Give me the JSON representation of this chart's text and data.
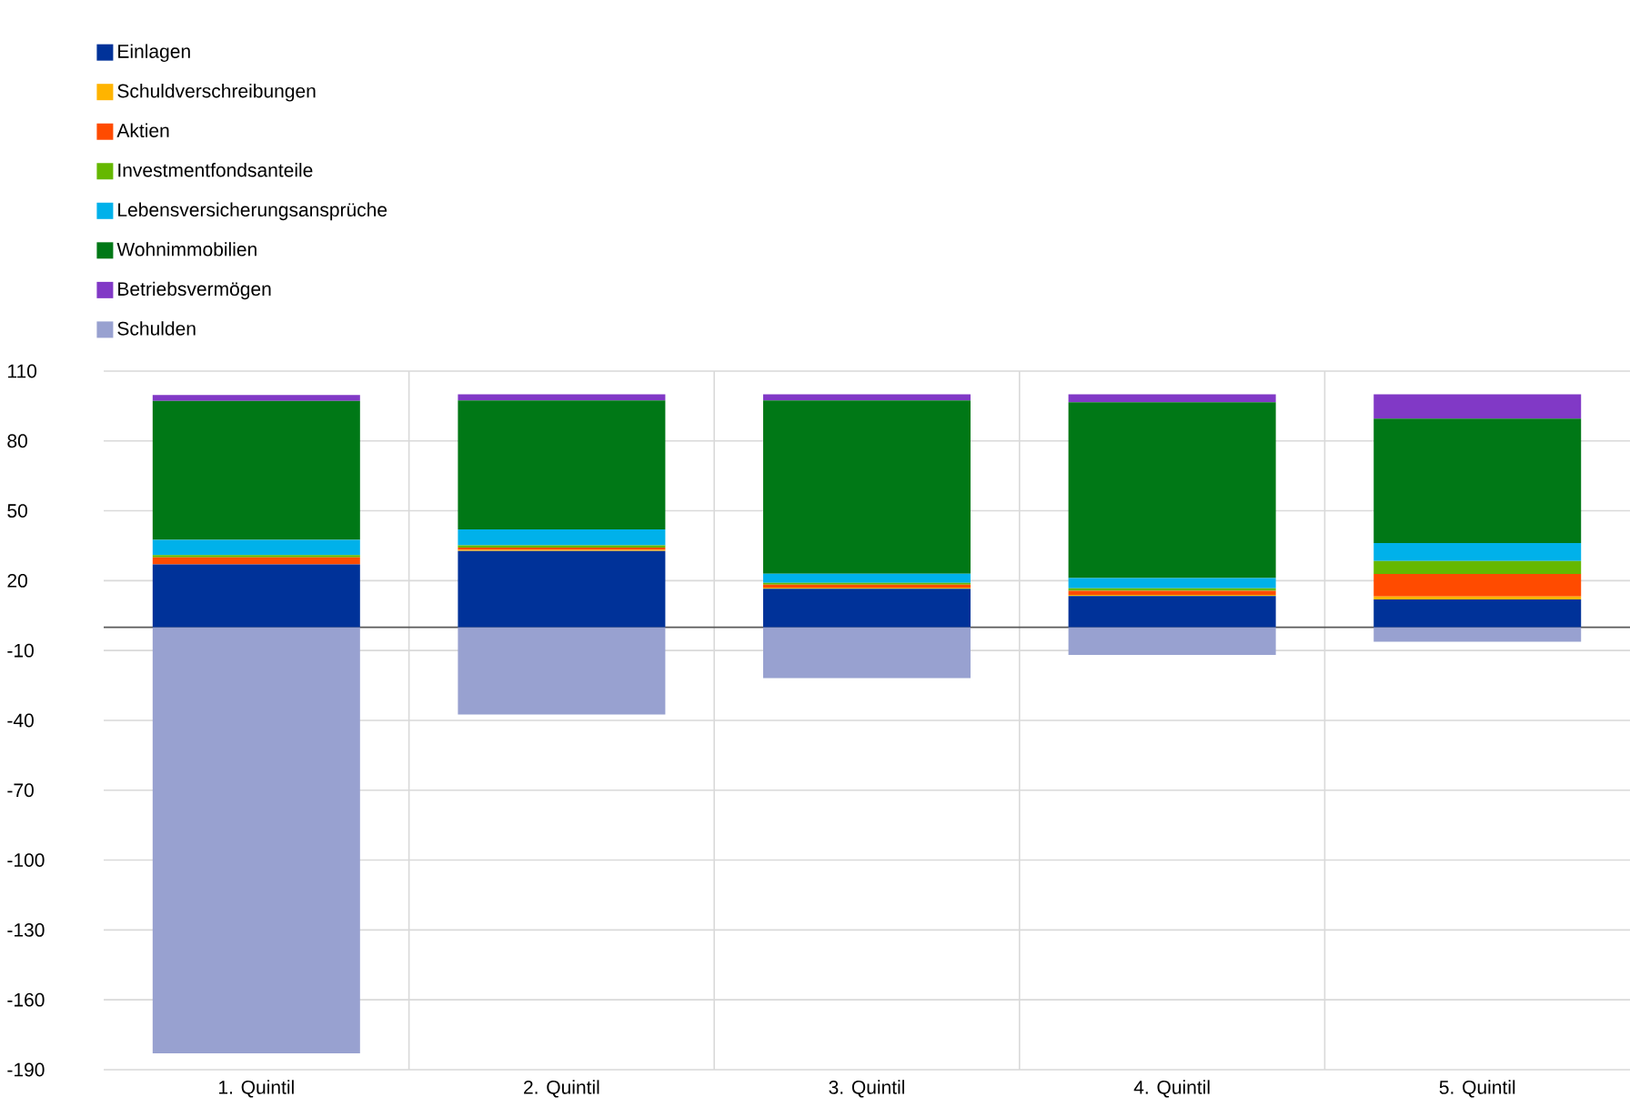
{
  "chart_data": {
    "type": "bar",
    "stacked": true,
    "categories": [
      "1. Quintil",
      "2. Quintil",
      "3. Quintil",
      "4. Quintil",
      "5. Quintil"
    ],
    "series": [
      {
        "name": "Einlagen",
        "color": "#003299",
        "values": [
          27,
          32.7,
          16.5,
          13.4,
          11.9
        ]
      },
      {
        "name": "Schuldverschreibungen",
        "color": "#ffb400",
        "values": [
          null,
          0.5,
          0.5,
          0.5,
          1.3
        ]
      },
      {
        "name": "Aktien",
        "color": "#ff4b00",
        "values": [
          3,
          1,
          1.3,
          1.8,
          9.7
        ]
      },
      {
        "name": "Investmentfondsanteile",
        "color": "#65b800",
        "values": [
          1,
          1,
          0.8,
          1,
          5.5
        ]
      },
      {
        "name": "Lebensversicherungsansprüche",
        "color": "#00b1ea",
        "values": [
          6.5,
          6.8,
          3.9,
          4.4,
          7.8
        ]
      },
      {
        "name": "Wohnimmobilien",
        "color": "#007816",
        "values": [
          59.7,
          55.4,
          74.4,
          75.5,
          53.4
        ]
      },
      {
        "name": "Betriebsvermögen",
        "color": "#8139c6",
        "values": [
          2.5,
          2.6,
          2.6,
          3.4,
          10.4
        ]
      },
      {
        "name": "Schulden",
        "color": "#98a1d0",
        "values": [
          -183,
          -37.5,
          -21.8,
          -11.9,
          -6.2
        ]
      }
    ],
    "ylim": [
      -190,
      110
    ],
    "yticks": [
      -190,
      -160,
      -130,
      -100,
      -70,
      -40,
      -10,
      20,
      50,
      80,
      110
    ],
    "grid": true,
    "legend": "top left"
  }
}
